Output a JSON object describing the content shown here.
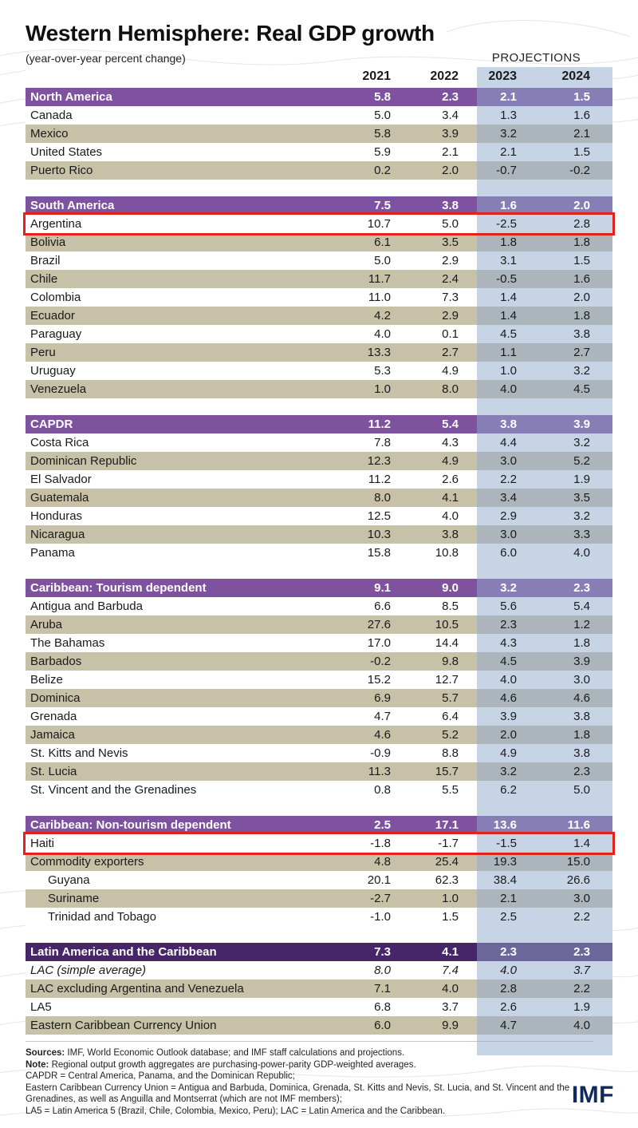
{
  "logo_text": "IMF",
  "colors": {
    "accent_purple": "#7E529F",
    "accent_purple_dark": "#472569",
    "row_tan": "#C7C1A8",
    "projection_band": "rgba(143,169,205,0.5)",
    "highlight_red": "#E2231A",
    "logo_navy": "#13295C",
    "text": "#1A1A1A"
  },
  "chart_data": {
    "type": "table",
    "title": "Western Hemisphere: Real GDP growth",
    "subtitle": "(year-over-year percent change)",
    "projections_label": "PROJECTIONS",
    "columns": [
      "2021",
      "2022",
      "2023",
      "2024"
    ],
    "projection_columns": [
      "2023",
      "2024"
    ],
    "sections": [
      {
        "name": "North America",
        "values": [
          "5.8",
          "2.3",
          "2.1",
          "1.5"
        ],
        "dark": false,
        "rows": [
          {
            "name": "Canada",
            "values": [
              "5.0",
              "3.4",
              "1.3",
              "1.6"
            ]
          },
          {
            "name": "Mexico",
            "values": [
              "5.8",
              "3.9",
              "3.2",
              "2.1"
            ]
          },
          {
            "name": "United States",
            "values": [
              "5.9",
              "2.1",
              "2.1",
              "1.5"
            ]
          },
          {
            "name": "Puerto Rico",
            "values": [
              "0.2",
              "2.0",
              "-0.7",
              "-0.2"
            ]
          }
        ]
      },
      {
        "name": "South America",
        "values": [
          "7.5",
          "3.8",
          "1.6",
          "2.0"
        ],
        "dark": false,
        "rows": [
          {
            "name": "Argentina",
            "values": [
              "10.7",
              "5.0",
              "-2.5",
              "2.8"
            ],
            "highlight": true
          },
          {
            "name": "Bolivia",
            "values": [
              "6.1",
              "3.5",
              "1.8",
              "1.8"
            ]
          },
          {
            "name": "Brazil",
            "values": [
              "5.0",
              "2.9",
              "3.1",
              "1.5"
            ]
          },
          {
            "name": "Chile",
            "values": [
              "11.7",
              "2.4",
              "-0.5",
              "1.6"
            ]
          },
          {
            "name": "Colombia",
            "values": [
              "11.0",
              "7.3",
              "1.4",
              "2.0"
            ]
          },
          {
            "name": "Ecuador",
            "values": [
              "4.2",
              "2.9",
              "1.4",
              "1.8"
            ]
          },
          {
            "name": "Paraguay",
            "values": [
              "4.0",
              "0.1",
              "4.5",
              "3.8"
            ]
          },
          {
            "name": "Peru",
            "values": [
              "13.3",
              "2.7",
              "1.1",
              "2.7"
            ]
          },
          {
            "name": "Uruguay",
            "values": [
              "5.3",
              "4.9",
              "1.0",
              "3.2"
            ]
          },
          {
            "name": "Venezuela",
            "values": [
              "1.0",
              "8.0",
              "4.0",
              "4.5"
            ]
          }
        ]
      },
      {
        "name": "CAPDR",
        "values": [
          "11.2",
          "5.4",
          "3.8",
          "3.9"
        ],
        "dark": false,
        "rows": [
          {
            "name": "Costa Rica",
            "values": [
              "7.8",
              "4.3",
              "4.4",
              "3.2"
            ]
          },
          {
            "name": "Dominican Republic",
            "values": [
              "12.3",
              "4.9",
              "3.0",
              "5.2"
            ]
          },
          {
            "name": "El Salvador",
            "values": [
              "11.2",
              "2.6",
              "2.2",
              "1.9"
            ]
          },
          {
            "name": "Guatemala",
            "values": [
              "8.0",
              "4.1",
              "3.4",
              "3.5"
            ]
          },
          {
            "name": "Honduras",
            "values": [
              "12.5",
              "4.0",
              "2.9",
              "3.2"
            ]
          },
          {
            "name": "Nicaragua",
            "values": [
              "10.3",
              "3.8",
              "3.0",
              "3.3"
            ]
          },
          {
            "name": "Panama",
            "values": [
              "15.8",
              "10.8",
              "6.0",
              "4.0"
            ]
          }
        ]
      },
      {
        "name": "Caribbean: Tourism dependent",
        "values": [
          "9.1",
          "9.0",
          "3.2",
          "2.3"
        ],
        "dark": false,
        "rows": [
          {
            "name": "Antigua and Barbuda",
            "values": [
              "6.6",
              "8.5",
              "5.6",
              "5.4"
            ]
          },
          {
            "name": "Aruba",
            "values": [
              "27.6",
              "10.5",
              "2.3",
              "1.2"
            ]
          },
          {
            "name": "The Bahamas",
            "values": [
              "17.0",
              "14.4",
              "4.3",
              "1.8"
            ]
          },
          {
            "name": "Barbados",
            "values": [
              "-0.2",
              "9.8",
              "4.5",
              "3.9"
            ]
          },
          {
            "name": "Belize",
            "values": [
              "15.2",
              "12.7",
              "4.0",
              "3.0"
            ]
          },
          {
            "name": "Dominica",
            "values": [
              "6.9",
              "5.7",
              "4.6",
              "4.6"
            ]
          },
          {
            "name": "Grenada",
            "values": [
              "4.7",
              "6.4",
              "3.9",
              "3.8"
            ]
          },
          {
            "name": "Jamaica",
            "values": [
              "4.6",
              "5.2",
              "2.0",
              "1.8"
            ]
          },
          {
            "name": "St. Kitts and Nevis",
            "values": [
              "-0.9",
              "8.8",
              "4.9",
              "3.8"
            ]
          },
          {
            "name": "St. Lucia",
            "values": [
              "11.3",
              "15.7",
              "3.2",
              "2.3"
            ]
          },
          {
            "name": "St. Vincent and the Grenadines",
            "values": [
              "0.8",
              "5.5",
              "6.2",
              "5.0"
            ]
          }
        ]
      },
      {
        "name": "Caribbean: Non-tourism dependent",
        "values": [
          "2.5",
          "17.1",
          "13.6",
          "11.6"
        ],
        "dark": false,
        "rows": [
          {
            "name": "Haiti",
            "values": [
              "-1.8",
              "-1.7",
              "-1.5",
              "1.4"
            ],
            "highlight": true
          },
          {
            "name": "Commodity exporters",
            "values": [
              "4.8",
              "25.4",
              "19.3",
              "15.0"
            ]
          },
          {
            "name": "Guyana",
            "values": [
              "20.1",
              "62.3",
              "38.4",
              "26.6"
            ],
            "indent": true
          },
          {
            "name": "Suriname",
            "values": [
              "-2.7",
              "1.0",
              "2.1",
              "3.0"
            ],
            "indent": true
          },
          {
            "name": "Trinidad and Tobago",
            "values": [
              "-1.0",
              "1.5",
              "2.5",
              "2.2"
            ],
            "indent": true
          }
        ]
      },
      {
        "name": "Latin America and the Caribbean",
        "values": [
          "7.3",
          "4.1",
          "2.3",
          "2.3"
        ],
        "dark": true,
        "rows": [
          {
            "name": "LAC (simple average)",
            "values": [
              "8.0",
              "7.4",
              "4.0",
              "3.7"
            ],
            "italic": true
          },
          {
            "name": "LAC excluding Argentina and Venezuela",
            "values": [
              "7.1",
              "4.0",
              "2.8",
              "2.2"
            ]
          },
          {
            "name": "LA5",
            "values": [
              "6.8",
              "3.7",
              "2.6",
              "1.9"
            ]
          },
          {
            "name": "Eastern Caribbean Currency Union",
            "values": [
              "6.0",
              "9.9",
              "4.7",
              "4.0"
            ]
          }
        ]
      }
    ],
    "highlighted_rows": [
      "Argentina",
      "Haiti"
    ]
  },
  "footnotes": [
    {
      "bold": "Sources:",
      "text": " IMF, World Economic Outlook database; and IMF staff calculations and projections."
    },
    {
      "bold": "Note:",
      "text": " Regional output growth aggregates are purchasing-power-parity GDP-weighted averages."
    },
    {
      "bold": "",
      "text": "CAPDR = Central America, Panama, and the Dominican Republic;"
    },
    {
      "bold": "",
      "text": "Eastern Caribbean Currency Union = Antigua and Barbuda, Dominica, Grenada, St. Kitts and Nevis, St. Lucia, and St. Vincent and the Grenadines, as well as Anguilla and Montserrat (which are not IMF members);"
    },
    {
      "bold": "",
      "text": "LA5 = Latin America 5 (Brazil, Chile, Colombia, Mexico, Peru); LAC = Latin America and the Caribbean."
    }
  ]
}
